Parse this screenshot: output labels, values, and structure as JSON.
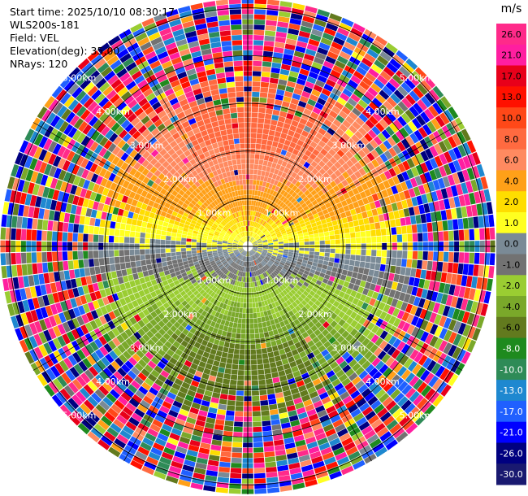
{
  "header": {
    "start_time": "Start time: 2025/10/10 08:30:17",
    "instrument": "WLS200s-181",
    "field": "Field: VEL",
    "elevation": "Elevation(deg): 35.00",
    "nrays": "NRays: 120"
  },
  "chart_data": {
    "type": "heatmap",
    "projection": "polar PPI (radial velocity)",
    "field": "VEL",
    "unit": "m/s",
    "elevation_deg": 35.0,
    "nrays": 120,
    "range_rings_km": [
      1.0,
      2.0,
      3.0,
      4.0,
      5.0
    ],
    "ring_labels": [
      "1.00km",
      "2.00km",
      "3.00km",
      "4.00km",
      "5.00km"
    ],
    "max_range_km": 5.2,
    "grid": true,
    "colorbar": {
      "title": "m/s",
      "placement": "right",
      "ticks": [
        "26.0",
        "21.0",
        "17.0",
        "13.0",
        "10.0",
        "8.0",
        "6.0",
        "4.0",
        "2.0",
        "1.0",
        "0.0",
        "-1.0",
        "-2.0",
        "-4.0",
        "-6.0",
        "-8.0",
        "-10.0",
        "-13.0",
        "-17.0",
        "-21.0",
        "-26.0",
        "-30.0"
      ],
      "colors": [
        "#ff2a8a",
        "#ff1ea0",
        "#e8001a",
        "#ff1100",
        "#ff4818",
        "#ff6a40",
        "#ff8a60",
        "#ffa018",
        "#ffdd00",
        "#ffff20",
        "#7a8a96",
        "#727272",
        "#9acd32",
        "#7aa82a",
        "#627a1e",
        "#1e8a1e",
        "#2e8b57",
        "#1e88d0",
        "#2060ff",
        "#0000ff",
        "#000080",
        "#191970"
      ]
    },
    "velocity_field_description": {
      "near_zero_core_km": 1.0,
      "positive_sector_deg": [
        300,
        60
      ],
      "negative_sector_deg": [
        120,
        240
      ],
      "noise_beyond_km": 3.5
    }
  }
}
